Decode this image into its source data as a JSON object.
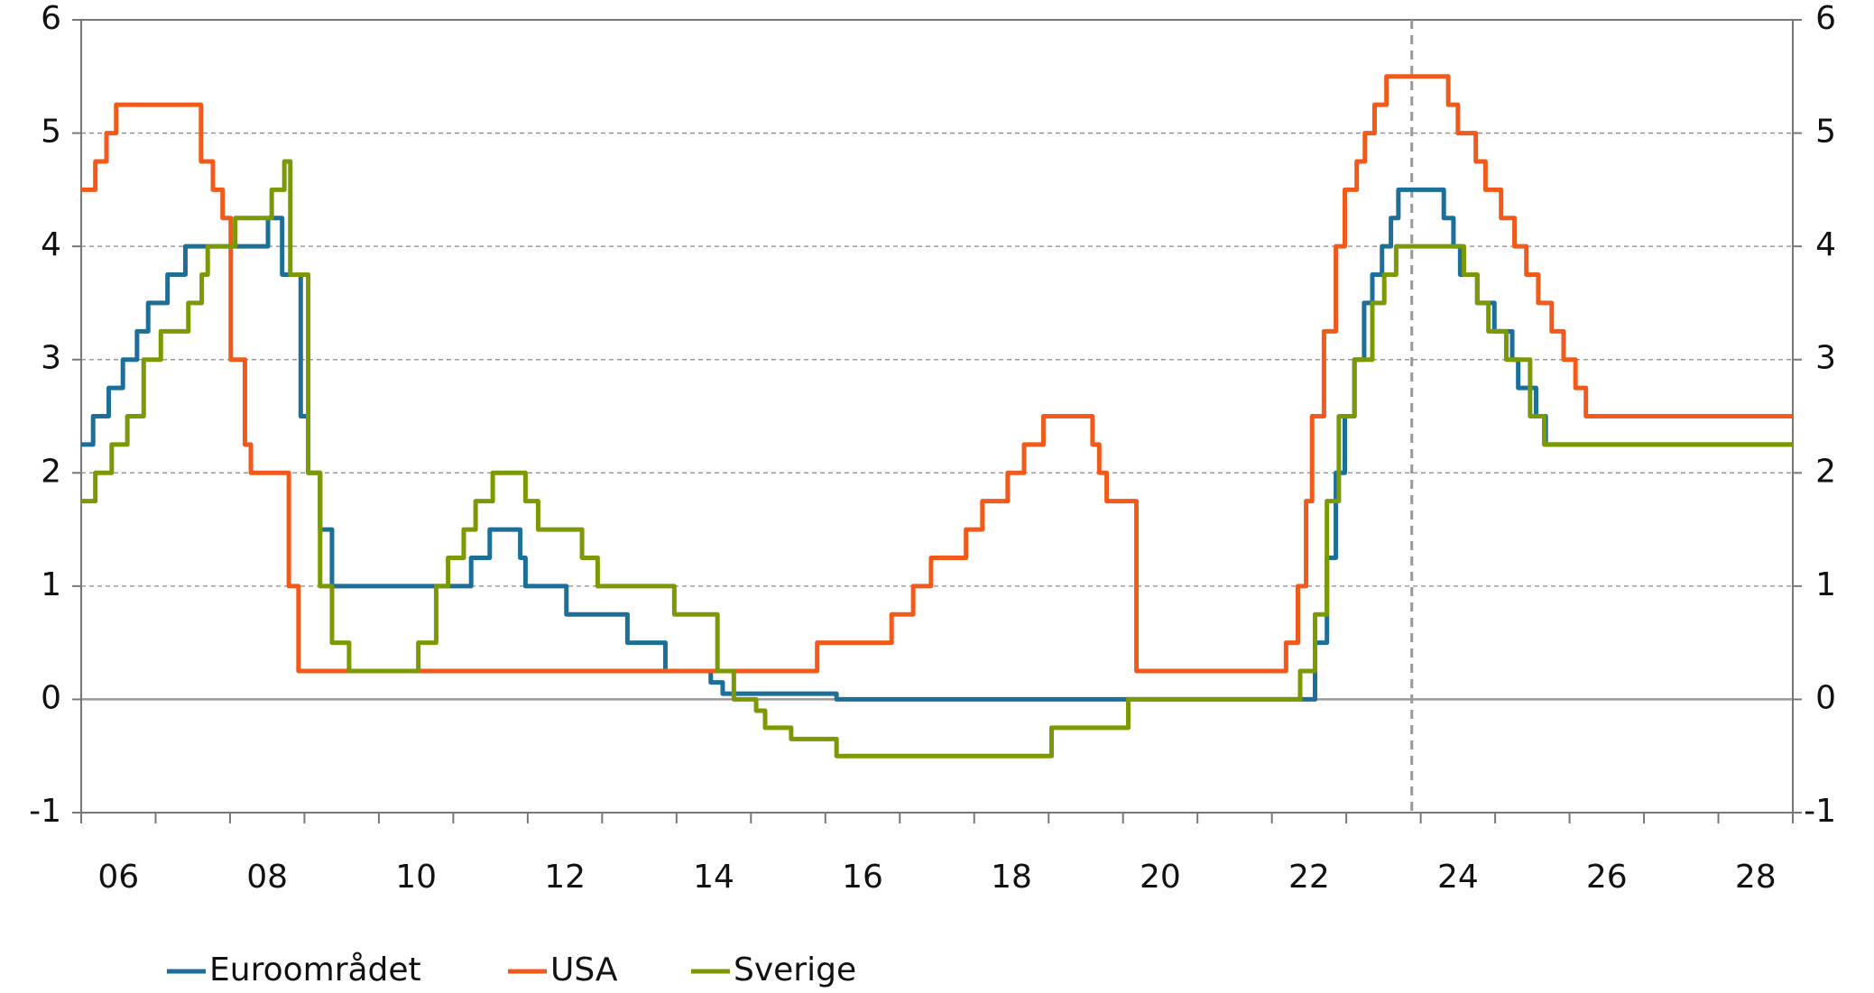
{
  "chart_data": {
    "type": "line",
    "step": "post",
    "xlim": [
      6,
      29
    ],
    "xticks": [
      {
        "value": 6.5,
        "label": "06"
      },
      {
        "value": 8.5,
        "label": "08"
      },
      {
        "value": 10.5,
        "label": "10"
      },
      {
        "value": 12.5,
        "label": "12"
      },
      {
        "value": 14.5,
        "label": "14"
      },
      {
        "value": 16.5,
        "label": "16"
      },
      {
        "value": 18.5,
        "label": "18"
      },
      {
        "value": 20.5,
        "label": "20"
      },
      {
        "value": 22.5,
        "label": "22"
      },
      {
        "value": 24.5,
        "label": "24"
      },
      {
        "value": 26.5,
        "label": "26"
      },
      {
        "value": 28.5,
        "label": "28"
      }
    ],
    "xtick_marks": [
      6,
      7,
      8,
      9,
      10,
      11,
      12,
      13,
      14,
      15,
      16,
      17,
      18,
      19,
      20,
      21,
      22,
      23,
      24,
      25,
      26,
      27,
      28,
      29
    ],
    "ylim": [
      -1,
      6
    ],
    "yticks": [
      -1,
      0,
      1,
      2,
      3,
      4,
      5,
      6
    ],
    "y2lim": [
      -1,
      6
    ],
    "y2ticks": [
      -1,
      0,
      1,
      2,
      3,
      4,
      5,
      6
    ],
    "grid": true,
    "vline_x": 23.88,
    "series": [
      {
        "name": "Euroområdet",
        "color": "#1b6f98",
        "x": [
          6.0,
          6.16,
          6.37,
          6.56,
          6.75,
          6.9,
          7.16,
          7.4,
          8.51,
          8.7,
          8.95,
          9.05,
          9.21,
          9.37,
          11.24,
          11.49,
          11.9,
          11.97,
          12.52,
          13.34,
          13.85,
          14.46,
          14.62,
          16.15,
          22.58,
          22.74,
          22.86,
          22.98,
          23.11,
          23.24,
          23.35,
          23.48,
          23.6,
          23.7,
          24.31,
          24.44,
          24.53,
          24.76,
          24.99,
          25.23,
          25.31,
          25.55,
          25.68,
          29.0
        ],
        "values": [
          2.25,
          2.5,
          2.75,
          3.0,
          3.25,
          3.5,
          3.75,
          4.0,
          4.25,
          3.75,
          2.5,
          2.0,
          1.5,
          1.0,
          1.25,
          1.5,
          1.25,
          1.0,
          0.75,
          0.5,
          0.25,
          0.15,
          0.05,
          0.0,
          0.5,
          1.25,
          2.0,
          2.5,
          3.0,
          3.5,
          3.75,
          4.0,
          4.25,
          4.5,
          4.25,
          4.0,
          3.75,
          3.5,
          3.25,
          3.0,
          2.75,
          2.5,
          2.25,
          2.25
        ]
      },
      {
        "name": "USA",
        "color": "#f15a1a",
        "x": [
          6.0,
          6.19,
          6.34,
          6.47,
          7.61,
          7.77,
          7.9,
          8.01,
          8.2,
          8.28,
          8.79,
          8.92,
          15.89,
          16.89,
          17.18,
          17.42,
          17.89,
          18.11,
          18.45,
          18.67,
          18.93,
          19.59,
          19.68,
          19.78,
          20.18,
          22.19,
          22.35,
          22.46,
          22.54,
          22.7,
          22.86,
          22.98,
          23.14,
          23.25,
          23.38,
          23.54,
          24.37,
          24.5,
          24.74,
          24.87,
          25.08,
          25.26,
          25.42,
          25.58,
          25.76,
          25.92,
          26.08,
          26.22,
          29.0
        ],
        "values": [
          4.5,
          4.75,
          5.0,
          5.25,
          4.75,
          4.5,
          4.25,
          3.0,
          2.25,
          2.0,
          1.0,
          0.25,
          0.5,
          0.75,
          1.0,
          1.25,
          1.5,
          1.75,
          2.0,
          2.25,
          2.5,
          2.25,
          2.0,
          1.75,
          0.25,
          0.5,
          1.0,
          1.75,
          2.5,
          3.25,
          4.0,
          4.5,
          4.75,
          5.0,
          5.25,
          5.5,
          5.25,
          5.0,
          4.75,
          4.5,
          4.25,
          4.0,
          3.75,
          3.5,
          3.25,
          3.0,
          2.75,
          2.5,
          2.5
        ]
      },
      {
        "name": "Sverige",
        "color": "#7b9a02",
        "x": [
          6.0,
          6.19,
          6.41,
          6.62,
          6.84,
          7.07,
          7.44,
          7.62,
          7.7,
          8.07,
          8.56,
          8.73,
          8.81,
          9.05,
          9.21,
          9.37,
          9.6,
          10.53,
          10.77,
          10.93,
          11.14,
          11.3,
          11.53,
          11.97,
          12.14,
          12.73,
          12.94,
          13.97,
          14.55,
          14.77,
          15.07,
          15.19,
          15.54,
          16.15,
          19.04,
          20.07,
          22.38,
          22.58,
          22.74,
          22.9,
          23.11,
          23.35,
          23.51,
          23.67,
          24.58,
          24.76,
          24.91,
          25.15,
          25.47,
          25.66,
          29.0
        ],
        "values": [
          1.75,
          2.0,
          2.25,
          2.5,
          3.0,
          3.25,
          3.5,
          3.75,
          4.0,
          4.25,
          4.5,
          4.75,
          3.75,
          2.0,
          1.0,
          0.5,
          0.25,
          0.5,
          1.0,
          1.25,
          1.5,
          1.75,
          2.0,
          1.75,
          1.5,
          1.25,
          1.0,
          0.75,
          0.25,
          0.0,
          -0.1,
          -0.25,
          -0.35,
          -0.5,
          -0.25,
          0.0,
          0.25,
          0.75,
          1.75,
          2.5,
          3.0,
          3.5,
          3.75,
          4.0,
          3.75,
          3.5,
          3.25,
          3.0,
          2.5,
          2.25,
          2.25
        ]
      }
    ]
  }
}
